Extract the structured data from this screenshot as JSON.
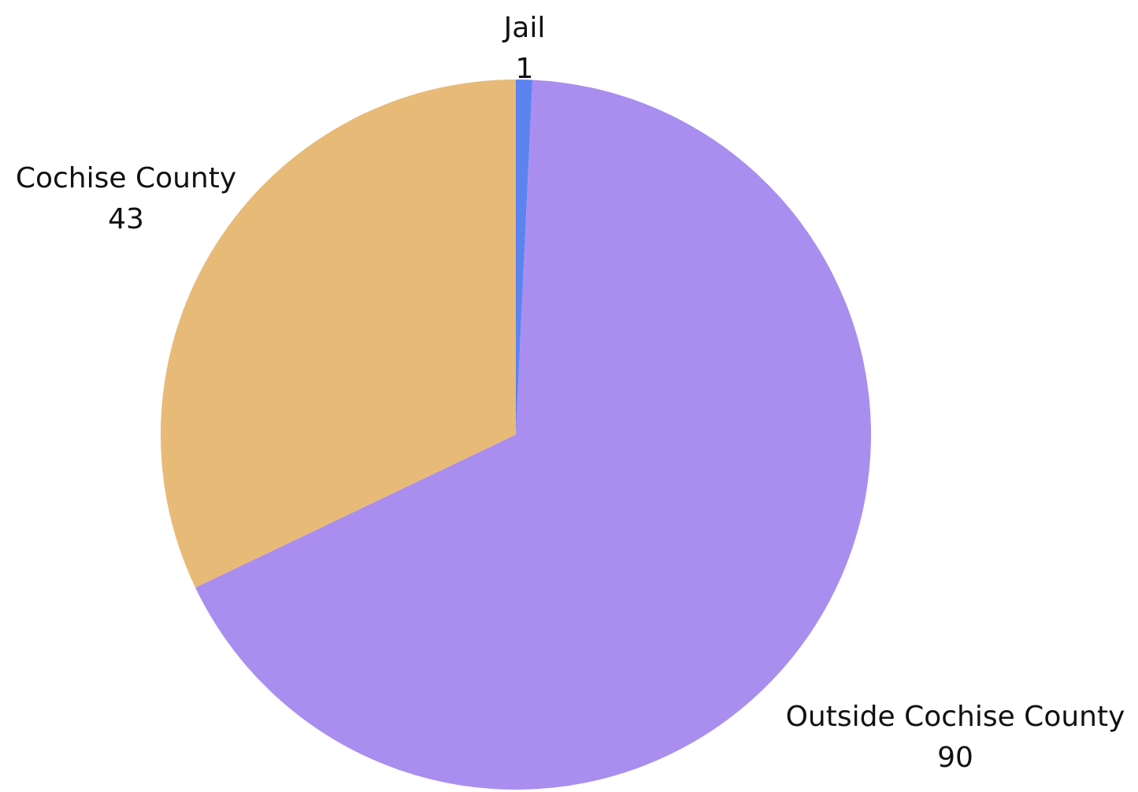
{
  "chart_data": {
    "type": "pie",
    "title": "",
    "slices": [
      {
        "label": "Jail",
        "value": 1,
        "color": "#5b84f0"
      },
      {
        "label": "Outside Cochise County",
        "value": 90,
        "color": "#a98eef"
      },
      {
        "label": "Cochise County",
        "value": 43,
        "color": "#e8ba78"
      }
    ],
    "start_angle_deg": 0,
    "direction": "clockwise",
    "legend": "none",
    "labels": "outside, name above value"
  }
}
